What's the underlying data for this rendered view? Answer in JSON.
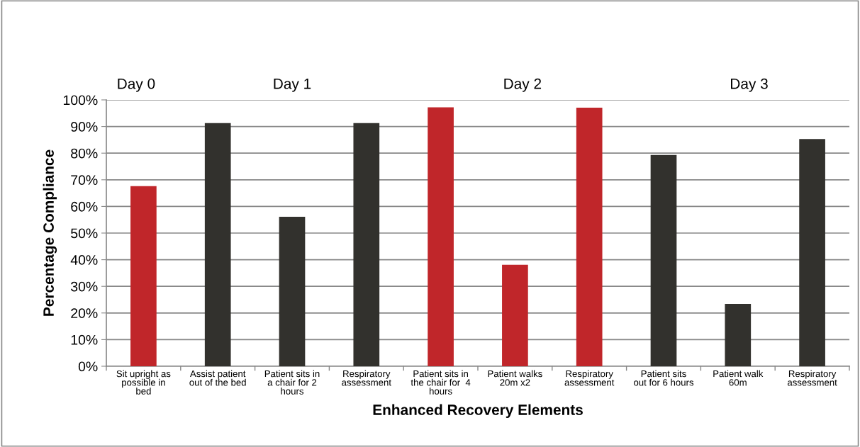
{
  "chart_data": {
    "type": "bar",
    "xlabel": "Enhanced Recovery Elements",
    "ylabel": "Percentage Compliance",
    "categories": [
      "Sit upright as\npossible in\nbed",
      "Assist patient\nout of the bed",
      "Patient sits in\na chair for 2\nhours",
      "Respiratory\nassessment",
      "Patient sits in\nthe chair for  4\nhours",
      "Patient walks\n20m x2",
      "Respiratory\nassessment",
      "Patient sits\nout for 6 hours",
      "Patient walk\n60m",
      "Respiratory\nassessment"
    ],
    "values": [
      67.6,
      91.3,
      56.1,
      91.3,
      97.2,
      38.1,
      97.1,
      79.3,
      23.4,
      85.3
    ],
    "colors": [
      "#c0262a",
      "#32312d",
      "#32312d",
      "#32312d",
      "#c0262a",
      "#c0262a",
      "#c0262a",
      "#32312d",
      "#32312d",
      "#32312d"
    ],
    "ylim": [
      0,
      100
    ],
    "yticks": [
      {
        "value": 0,
        "label": "0%"
      },
      {
        "value": 10,
        "label": "10%"
      },
      {
        "value": 20,
        "label": "20%"
      },
      {
        "value": 30,
        "label": "30%"
      },
      {
        "value": 40,
        "label": "40%"
      },
      {
        "value": 50,
        "label": "50%"
      },
      {
        "value": 60,
        "label": "60%"
      },
      {
        "value": 70,
        "label": "70%"
      },
      {
        "value": 80,
        "label": "80%"
      },
      {
        "value": 90,
        "label": "90%"
      },
      {
        "value": 100,
        "label": "100%"
      }
    ],
    "annotations": [
      "Day 0",
      "Day 1",
      "Day 2",
      "Day 3"
    ],
    "grid": "y",
    "legend": false
  }
}
